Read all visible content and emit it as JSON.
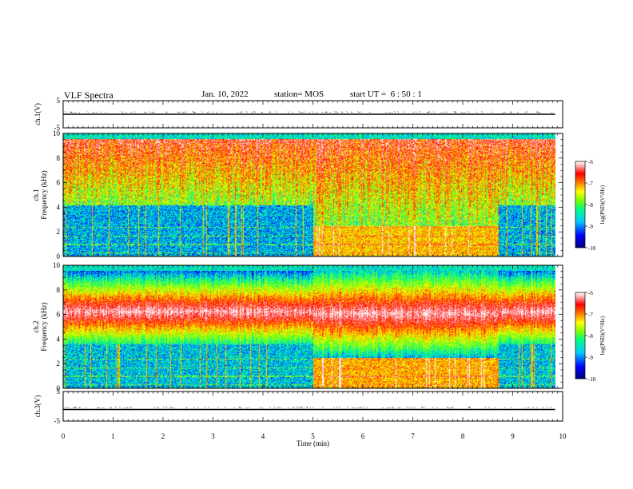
{
  "header": {
    "title": "VLF Spectra",
    "date": "Jan. 10, 2022",
    "station": "station= MOS",
    "start_ut": "start UT =  6 : 50 : 1"
  },
  "chart_data": [
    {
      "type": "line",
      "panel": "ch1-waveform",
      "ylabel": "ch.1(V)",
      "ylim": [
        -5,
        5
      ],
      "y_ticks": [
        "5",
        "-5"
      ],
      "xlim": [
        0,
        10
      ],
      "baseline": 0
    },
    {
      "type": "heatmap",
      "panel": "ch1-spectrogram",
      "ylabel": "ch.1\nFrequency (kHz)",
      "ylim": [
        0,
        10
      ],
      "y_ticks": [
        "0",
        "2",
        "4",
        "6",
        "8",
        "10"
      ],
      "xlim": [
        0,
        9.85
      ],
      "colorbar": {
        "label": "log(PSD)(V²/Hz)",
        "range": [
          -10,
          -6
        ],
        "ticks": [
          "-6",
          "-7",
          "-8",
          "-9",
          "-10"
        ]
      },
      "segments": [
        {
          "x_range": [
            0,
            5.0
          ],
          "low_band_kHz": [
            0,
            4.2
          ],
          "hiss_band_kHz": [
            4.2,
            9.6
          ]
        },
        {
          "x_range": [
            5.0,
            8.7
          ],
          "low_band_kHz": [
            0,
            2.5
          ],
          "hiss_band_kHz": [
            2.5,
            9.6
          ]
        },
        {
          "x_range": [
            8.7,
            9.85
          ],
          "low_band_kHz": [
            0,
            4.2
          ],
          "hiss_band_kHz": [
            4.2,
            9.6
          ]
        }
      ]
    },
    {
      "type": "heatmap",
      "panel": "ch2-spectrogram",
      "ylabel": "ch.2\nFrequency (kHz)",
      "ylim": [
        0,
        10
      ],
      "y_ticks": [
        "0",
        "2",
        "4",
        "6",
        "8",
        "10"
      ],
      "xlim": [
        0,
        9.85
      ],
      "colorbar": {
        "label": "log(PSD)(V²/Hz)",
        "range": [
          -10,
          -6
        ],
        "ticks": [
          "-6",
          "-7",
          "-8",
          "-9",
          "-10"
        ]
      },
      "segments": [
        {
          "x_range": [
            0,
            5.0
          ],
          "low_band_kHz": [
            0,
            3.6
          ],
          "peak_band_kHz": [
            4.5,
            8.0
          ]
        },
        {
          "x_range": [
            5.0,
            8.7
          ],
          "low_band_kHz": [
            0,
            2.5
          ],
          "peak_band_kHz": [
            4.0,
            8.2
          ]
        },
        {
          "x_range": [
            8.7,
            9.85
          ],
          "low_band_kHz": [
            0,
            3.6
          ],
          "peak_band_kHz": [
            4.5,
            8.0
          ]
        }
      ]
    },
    {
      "type": "line",
      "panel": "ch3-waveform",
      "ylabel": "ch.3(V)",
      "ylim": [
        -5,
        5
      ],
      "y_ticks": [
        "5",
        "-5"
      ],
      "xlim": [
        0,
        10
      ],
      "baseline": 0,
      "xlabel": "Time (min)",
      "x_ticks": [
        "0",
        "1",
        "2",
        "3",
        "4",
        "5",
        "6",
        "7",
        "8",
        "9",
        "10"
      ]
    }
  ],
  "colors": {
    "colormap": [
      "#00007a",
      "#0000ff",
      "#00c8ff",
      "#00ff80",
      "#80ff00",
      "#ffff00",
      "#ff8000",
      "#ff0000",
      "#ffb0b0",
      "#ffffff"
    ]
  }
}
